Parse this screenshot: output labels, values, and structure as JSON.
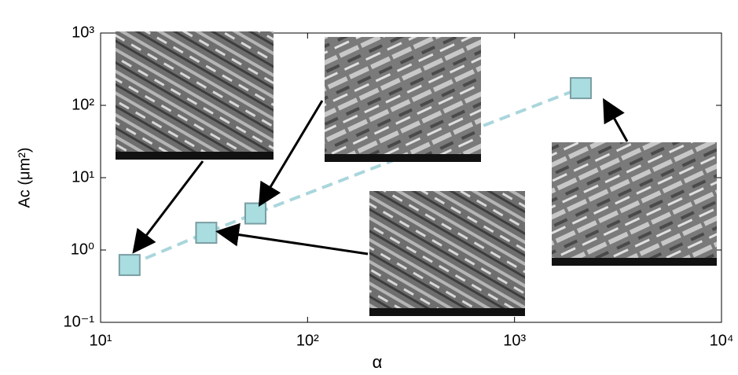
{
  "chart_data": {
    "type": "scatter",
    "xlabel": "α",
    "ylabel": "Ac (μm²)",
    "xscale": "log",
    "yscale": "log",
    "xlim": [
      10,
      10000
    ],
    "ylim": [
      0.1,
      1000
    ],
    "xticks": [
      {
        "value": 10,
        "label": "10¹"
      },
      {
        "value": 100,
        "label": "10²"
      },
      {
        "value": 1000,
        "label": "10³"
      },
      {
        "value": 10000,
        "label": "10⁴"
      }
    ],
    "yticks": [
      {
        "value": 0.1,
        "label": "10⁻¹"
      },
      {
        "value": 1,
        "label": "10⁰"
      },
      {
        "value": 10,
        "label": "10¹"
      },
      {
        "value": 100,
        "label": "10²"
      },
      {
        "value": 1000,
        "label": "10³"
      }
    ],
    "grid": false,
    "series": [
      {
        "color": "#a9dde0",
        "line_color": "#a9d6dc",
        "line_style": "dashed",
        "x": [
          13.8,
          32.4,
          56,
          2090
        ],
        "values": [
          0.62,
          1.73,
          3.2,
          173
        ]
      }
    ]
  }
}
